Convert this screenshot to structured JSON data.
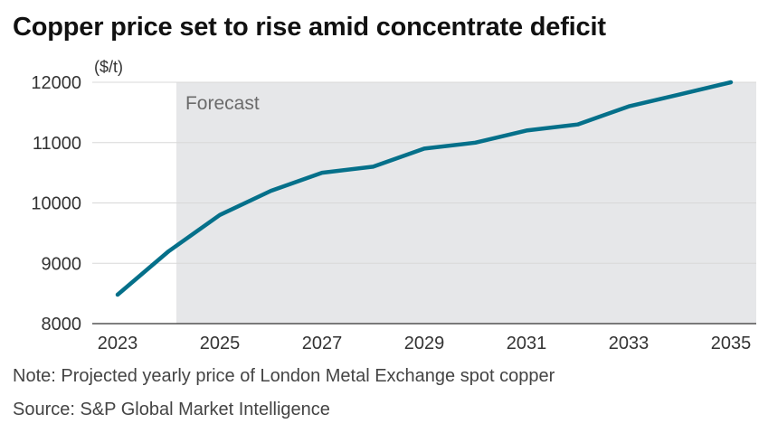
{
  "title": "Copper price set to rise amid concentrate deficit",
  "note": "Note: Projected yearly price of London Metal Exchange spot copper",
  "source": "Source: S&P Global Market Intelligence",
  "colors": {
    "line": "#05708a",
    "forecast_band": "#e6e7e9",
    "grid": "#d8d8d8",
    "axis": "#333333"
  },
  "chart_data": {
    "type": "line",
    "title": "Copper price set to rise amid concentrate deficit",
    "ylabel": "($/t)",
    "xlabel": "",
    "x": [
      2023,
      2024,
      2025,
      2026,
      2027,
      2028,
      2029,
      2030,
      2031,
      2032,
      2033,
      2034,
      2035
    ],
    "series": [
      {
        "values": [
          8480,
          9200,
          9800,
          10200,
          10500,
          10600,
          10900,
          11000,
          11200,
          11300,
          11600,
          11800,
          12000
        ]
      }
    ],
    "xticks": [
      "2023",
      "2025",
      "2027",
      "2029",
      "2031",
      "2033",
      "2035"
    ],
    "yticks": [
      "8000",
      "9000",
      "10000",
      "11000",
      "12000"
    ],
    "ylim": [
      8000,
      12000
    ],
    "xlim": [
      2023,
      2035
    ],
    "forecast": {
      "label": "Forecast",
      "start": 2024.15
    },
    "grid": true
  }
}
